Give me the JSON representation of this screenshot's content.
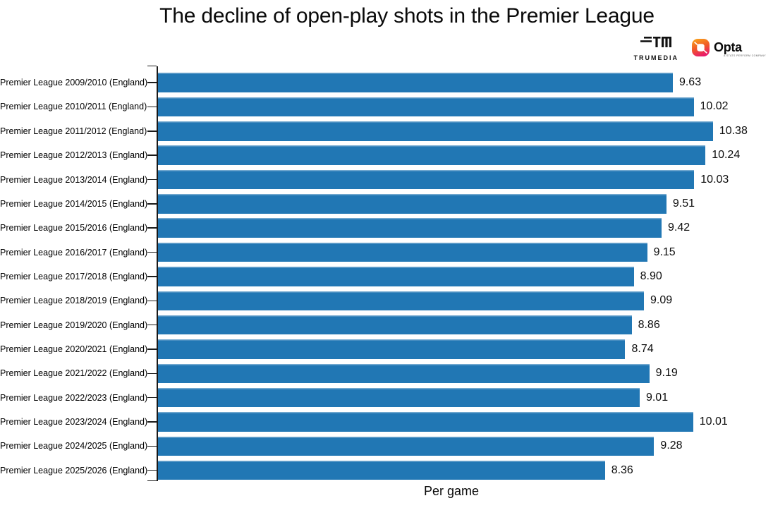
{
  "title": "The decline of open-play shots in the Premier League",
  "branding": {
    "trumedia_wordmark": "TRUMEDIA",
    "opta_wordmark": "Opta",
    "opta_tagline": "A STATS PERFORM COMPANY"
  },
  "chart_data": {
    "type": "bar",
    "orientation": "horizontal",
    "title": "The decline of open-play shots in the Premier League",
    "xlabel": "Per game",
    "xlim": [
      0,
      10.95
    ],
    "grid": false,
    "legend": "none",
    "bar_color": "#2177b4",
    "categories": [
      "Premier League 2009/2010 (England)",
      "Premier League 2010/2011 (England)",
      "Premier League 2011/2012 (England)",
      "Premier League 2012/2013 (England)",
      "Premier League 2013/2014 (England)",
      "Premier League 2014/2015 (England)",
      "Premier League 2015/2016 (England)",
      "Premier League 2016/2017 (England)",
      "Premier League 2017/2018 (England)",
      "Premier League 2018/2019 (England)",
      "Premier League 2019/2020 (England)",
      "Premier League 2020/2021 (England)",
      "Premier League 2021/2022 (England)",
      "Premier League 2022/2023 (England)",
      "Premier League 2023/2024 (England)",
      "Premier League 2024/2025 (England)",
      "Premier League 2025/2026 (England)"
    ],
    "values": [
      9.63,
      10.02,
      10.38,
      10.24,
      10.03,
      9.51,
      9.42,
      9.15,
      8.9,
      9.09,
      8.86,
      8.74,
      9.19,
      9.01,
      10.01,
      9.28,
      8.36
    ],
    "value_labels": [
      "9.63",
      "10.02",
      "10.38",
      "10.24",
      "10.03",
      "9.51",
      "9.42",
      "9.15",
      "8.90",
      "9.09",
      "8.86",
      "8.74",
      "9.19",
      "9.01",
      "10.01",
      "9.28",
      "8.36"
    ]
  }
}
